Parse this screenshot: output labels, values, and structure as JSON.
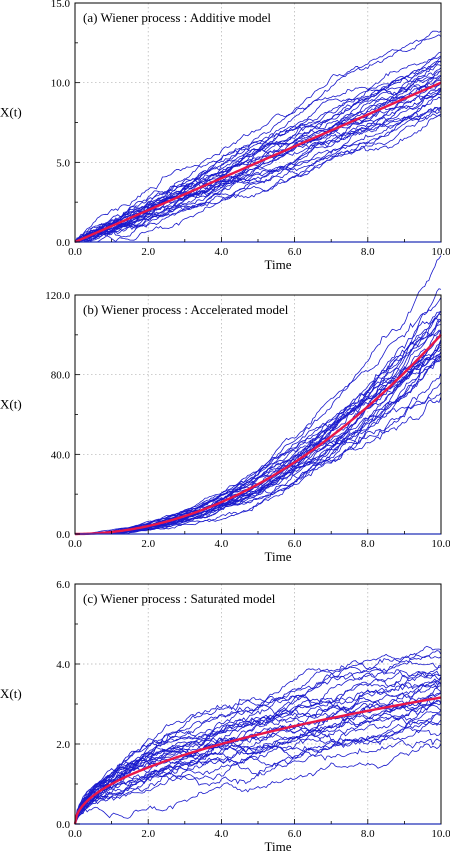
{
  "figure": {
    "description_panels": 3
  },
  "chart_data": [
    {
      "type": "line",
      "title": "(a)  Wiener process : Additive model",
      "xlabel": "Time",
      "ylabel": "X(t)",
      "xlim": [
        0,
        10
      ],
      "ylim": [
        0,
        15
      ],
      "xticks": [
        "0.0",
        "2.0",
        "4.0",
        "6.0",
        "8.0",
        "10.0"
      ],
      "yticks": [
        "0.0",
        "5.0",
        "10.0",
        "15.0"
      ],
      "grid": true,
      "model": "additive",
      "sample_paths": 30,
      "mean_curve": {
        "x": [
          0,
          2,
          4,
          6,
          8,
          10
        ],
        "y": [
          0,
          2,
          4,
          6,
          8,
          10
        ]
      },
      "path_spread_at_10": [
        8.0,
        12.0
      ],
      "path_color": "#1a1acc",
      "mean_color": "#e8174a"
    },
    {
      "type": "line",
      "title": "(b) Wiener process : Accelerated model",
      "xlabel": "Time",
      "ylabel": "X(t)",
      "xlim": [
        0,
        10
      ],
      "ylim": [
        0,
        120
      ],
      "xticks": [
        "0.0",
        "2.0",
        "4.0",
        "6.0",
        "8.0",
        "10.0"
      ],
      "yticks": [
        "0.0",
        "40.0",
        "80.0",
        "120.0"
      ],
      "grid": true,
      "model": "accelerated",
      "sample_paths": 30,
      "mean_curve": {
        "x": [
          0,
          2,
          4,
          6,
          8,
          10
        ],
        "y": [
          0,
          4,
          16,
          36,
          64,
          100
        ]
      },
      "path_spread_at_10": [
        93,
        108
      ],
      "path_color": "#1a1acc",
      "mean_color": "#e8174a"
    },
    {
      "type": "line",
      "title": "(c) Wiener process : Saturated model",
      "xlabel": "Time",
      "ylabel": "X(t)",
      "xlim": [
        0,
        10
      ],
      "ylim": [
        0,
        6
      ],
      "xticks": [
        "0.0",
        "2.0",
        "4.0",
        "6.0",
        "8.0",
        "10.0"
      ],
      "yticks": [
        "0.0",
        "2.0",
        "4.0",
        "6.0"
      ],
      "grid": true,
      "model": "saturated",
      "sample_paths": 30,
      "mean_curve": {
        "x": [
          0,
          1,
          2,
          4,
          6,
          8,
          10
        ],
        "y": [
          0,
          1.0,
          1.41,
          2.0,
          2.45,
          2.83,
          3.16
        ]
      },
      "path_spread_at_10": [
        2.2,
        4.0
      ],
      "path_color": "#1a1acc",
      "mean_color": "#e8174a"
    }
  ]
}
